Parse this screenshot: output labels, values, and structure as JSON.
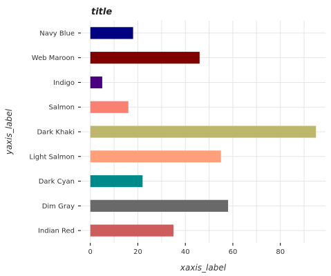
{
  "chart_data": {
    "type": "bar",
    "orientation": "horizontal",
    "title": "title",
    "xlabel": "xaxis_label",
    "ylabel": "yaxis_label",
    "categories": [
      "Indian Red",
      "Dim Gray",
      "Dark Cyan",
      "Light Salmon",
      "Dark Khaki",
      "Salmon",
      "Indigo",
      "Web Maroon",
      "Navy Blue"
    ],
    "values": [
      35,
      58,
      22,
      55,
      95,
      16,
      5,
      46,
      18
    ],
    "colors": [
      "#cd5c5c",
      "#696969",
      "#008b8b",
      "#ffa07a",
      "#bdb76b",
      "#fa8072",
      "#4b0082",
      "#800000",
      "#000080"
    ],
    "xlim": [
      -4,
      99
    ],
    "xticks": [
      0,
      20,
      40,
      60,
      80
    ],
    "grid": true,
    "legend": "none"
  }
}
